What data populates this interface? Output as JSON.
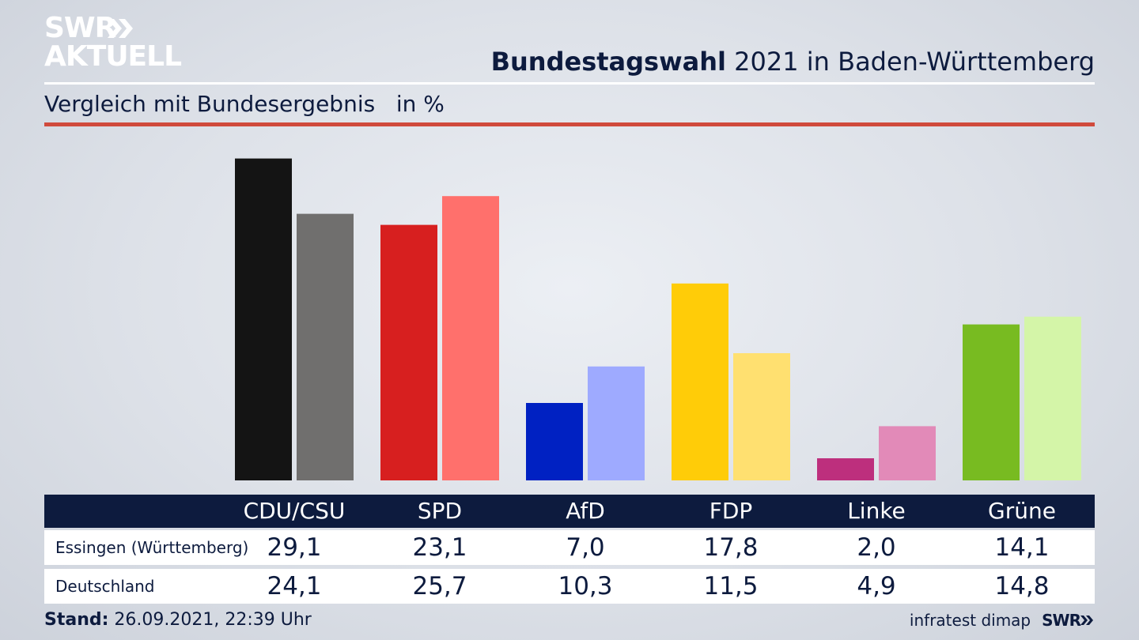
{
  "logo": {
    "line1": "SWR",
    "line2": "AKTUELL"
  },
  "header": {
    "title_bold": "Bundestagswahl",
    "title_rest": " 2021 in Baden-Württemberg",
    "subtitle": "Vergleich mit Bundesergebnis   in %"
  },
  "table": {
    "parties": [
      "CDU/CSU",
      "SPD",
      "AfD",
      "FDP",
      "Linke",
      "Grüne"
    ],
    "rows": [
      {
        "label": "Essingen (Württemberg)",
        "values": [
          "29,1",
          "23,1",
          "7,0",
          "17,8",
          "2,0",
          "14,1"
        ]
      },
      {
        "label": "Deutschland",
        "values": [
          "24,1",
          "25,7",
          "10,3",
          "11,5",
          "4,9",
          "14,8"
        ]
      }
    ]
  },
  "footer": {
    "stand_label": "Stand:",
    "stand_value": " 26.09.2021, 22:39 Uhr",
    "source": "infratest dimap",
    "brand": "SWR"
  },
  "chart_data": {
    "type": "bar",
    "categories": [
      "CDU/CSU",
      "SPD",
      "AfD",
      "FDP",
      "Linke",
      "Grüne"
    ],
    "series": [
      {
        "name": "Essingen (Württemberg)",
        "values": [
          29.1,
          23.1,
          7.0,
          17.8,
          2.0,
          14.1
        ],
        "colors": [
          "#141414",
          "#d71f1f",
          "#0021c2",
          "#ffcc08",
          "#bd2f7d",
          "#78bb21"
        ]
      },
      {
        "name": "Deutschland",
        "values": [
          24.1,
          25.7,
          10.3,
          11.5,
          4.9,
          14.8
        ],
        "colors": [
          "#706f6e",
          "#ff706c",
          "#9eaaff",
          "#ffe070",
          "#e28ab8",
          "#d4f5a8"
        ]
      }
    ],
    "ylim": [
      0,
      30
    ],
    "grid": false,
    "legend": "none"
  }
}
